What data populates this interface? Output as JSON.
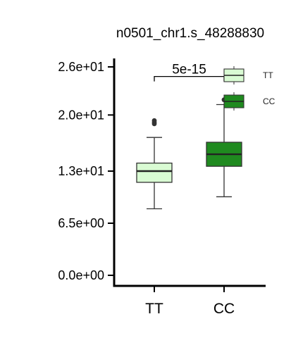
{
  "chart_data": {
    "type": "box",
    "title": "n0501_chr1.s_48288830",
    "xlabel": "",
    "ylabel": "",
    "categories": [
      "TT",
      "CC"
    ],
    "ylim": [
      -1.2,
      27.5
    ],
    "yticks": [
      0,
      6.5,
      13,
      20,
      26
    ],
    "ytick_labels": [
      "0.0e+00",
      "6.5e+00",
      "1.3e+01",
      "2.0e+01",
      "2.6e+01"
    ],
    "boxes": [
      {
        "category": "TT",
        "whisker_low": 8.3,
        "q1": 11.6,
        "median": 13.0,
        "q3": 14.0,
        "whisker_high": 17.2,
        "outliers": [
          18.9,
          19.1,
          19.3
        ],
        "color": "#d9fbd3"
      },
      {
        "category": "CC",
        "whisker_low": 9.8,
        "q1": 13.6,
        "median": 15.1,
        "q3": 16.6,
        "whisker_high": 21.3,
        "outliers": [
          21.9
        ],
        "color": "#1f8a1f"
      }
    ],
    "annotation": {
      "text": "5e-15",
      "between": [
        "TT",
        "CC"
      ],
      "y": 24.8
    },
    "legend": {
      "position": "top-right",
      "entries": [
        {
          "label": "TT",
          "color": "#d9fbd3"
        },
        {
          "label": "CC",
          "color": "#1f8a1f"
        }
      ]
    },
    "grid": false
  }
}
